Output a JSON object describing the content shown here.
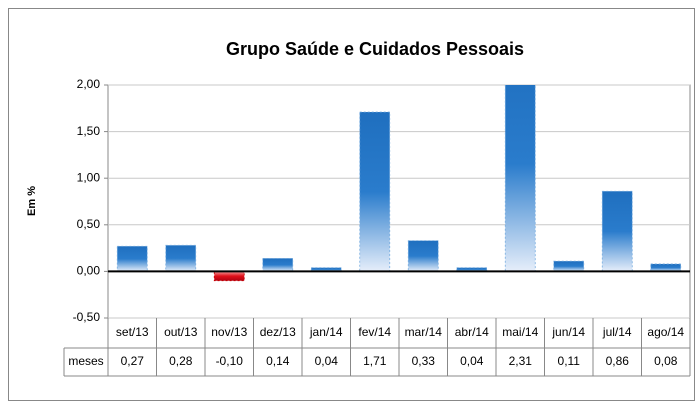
{
  "chart_data": {
    "type": "bar",
    "title": "Grupo Saúde e Cuidados Pessoais",
    "ylabel": "Em %",
    "categories": [
      "set/13",
      "out/13",
      "nov/13",
      "dez/13",
      "jan/14",
      "fev/14",
      "mar/14",
      "abr/14",
      "mai/14",
      "jun/14",
      "jul/14",
      "ago/14"
    ],
    "series": [
      {
        "name": "meses",
        "color": "#1f6fbf",
        "negative_color": "#e0101a",
        "values": [
          0.27,
          0.28,
          -0.1,
          0.14,
          0.04,
          1.71,
          0.33,
          0.04,
          2.31,
          0.11,
          0.86,
          0.08
        ],
        "value_labels": [
          "0,27",
          "0,28",
          "-0,10",
          "0,14",
          "0,04",
          "1,71",
          "0,33",
          "0,04",
          "2,31",
          "0,11",
          "0,86",
          "0,08"
        ]
      }
    ],
    "ylim": [
      -0.5,
      2.0
    ],
    "yticks": [
      {
        "value": -0.5,
        "label": "-0,50"
      },
      {
        "value": 0,
        "label": "0,00"
      },
      {
        "value": 0.5,
        "label": "0,50"
      },
      {
        "value": 1.0,
        "label": "1,00"
      },
      {
        "value": 1.5,
        "label": "1,50"
      },
      {
        "value": 2.0,
        "label": "2,00"
      }
    ],
    "grid": true
  }
}
